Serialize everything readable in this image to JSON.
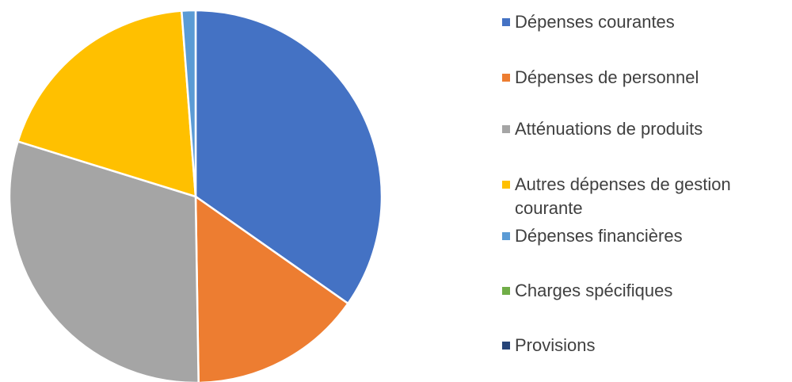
{
  "chart_data": {
    "type": "pie",
    "categories": [
      "Dépenses courantes",
      "Dépenses de personnel",
      "Atténuations de produits",
      "Autres dépenses de gestion courante",
      "Dépenses financières",
      "Charges spécifiques",
      "Provisions"
    ],
    "values": [
      34.7,
      15,
      30,
      19,
      1.2,
      0,
      0
    ],
    "colors": [
      "#4472c4",
      "#ed7d31",
      "#a5a5a5",
      "#ffc000",
      "#5b9bd5",
      "#70ad47",
      "#264478"
    ],
    "legend": "right"
  }
}
